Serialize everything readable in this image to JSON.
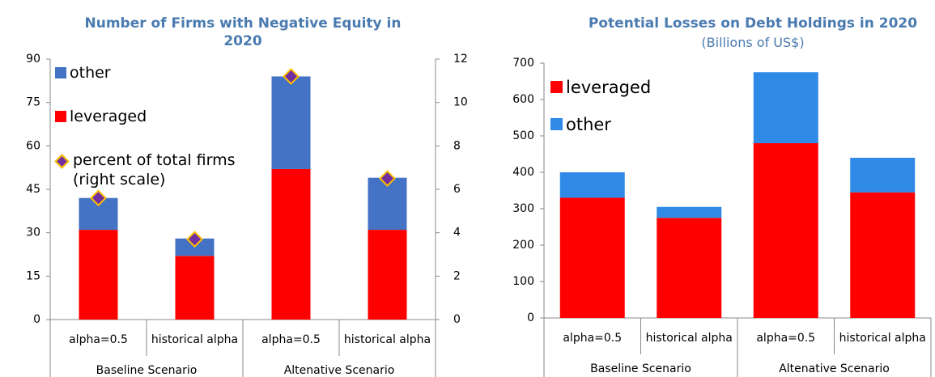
{
  "chart_data": [
    {
      "type": "bar",
      "stacked": true,
      "title": "Number of Firms with Negative Equity in 2020",
      "categories": [
        "alpha=0.5",
        "historical alpha",
        "alpha=0.5",
        "historical alpha"
      ],
      "groups": [
        "Baseline Scenario",
        "Altenative Scenario"
      ],
      "ylim": [
        0,
        90
      ],
      "yticks": [
        0,
        15,
        30,
        45,
        60,
        75,
        90
      ],
      "y2lim": [
        0,
        12
      ],
      "y2ticks": [
        0,
        2,
        4,
        6,
        8,
        10,
        12
      ],
      "legend_reversed": true,
      "series": [
        {
          "name": "other",
          "color": "#4472c4",
          "values": [
            11,
            6,
            32,
            18
          ]
        },
        {
          "name": "leveraged",
          "color": "#ff0000",
          "values": [
            31,
            22,
            52,
            31
          ]
        },
        {
          "name": "percent of total firms (right scale)",
          "type": "scatter",
          "axis": "y2",
          "color": "#7030a0",
          "values": [
            5.6,
            3.7,
            11.2,
            6.5
          ]
        }
      ]
    },
    {
      "type": "bar",
      "stacked": true,
      "title": "Potential Losses on Debt Holdings in 2020",
      "subtitle": "(Billions of US$)",
      "categories": [
        "alpha=0.5",
        "historical alpha",
        "alpha=0.5",
        "historical alpha"
      ],
      "groups": [
        "Baseline Scenario",
        "Altenative Scenario"
      ],
      "ylim": [
        0,
        700
      ],
      "yticks": [
        0,
        100,
        200,
        300,
        400,
        500,
        600,
        700
      ],
      "legend_reversed": false,
      "series": [
        {
          "name": "leveraged",
          "color": "#ff0000",
          "values": [
            330,
            275,
            480,
            345
          ]
        },
        {
          "name": "other",
          "color": "#2e8ae6",
          "values": [
            70,
            30,
            195,
            95
          ]
        }
      ]
    }
  ]
}
